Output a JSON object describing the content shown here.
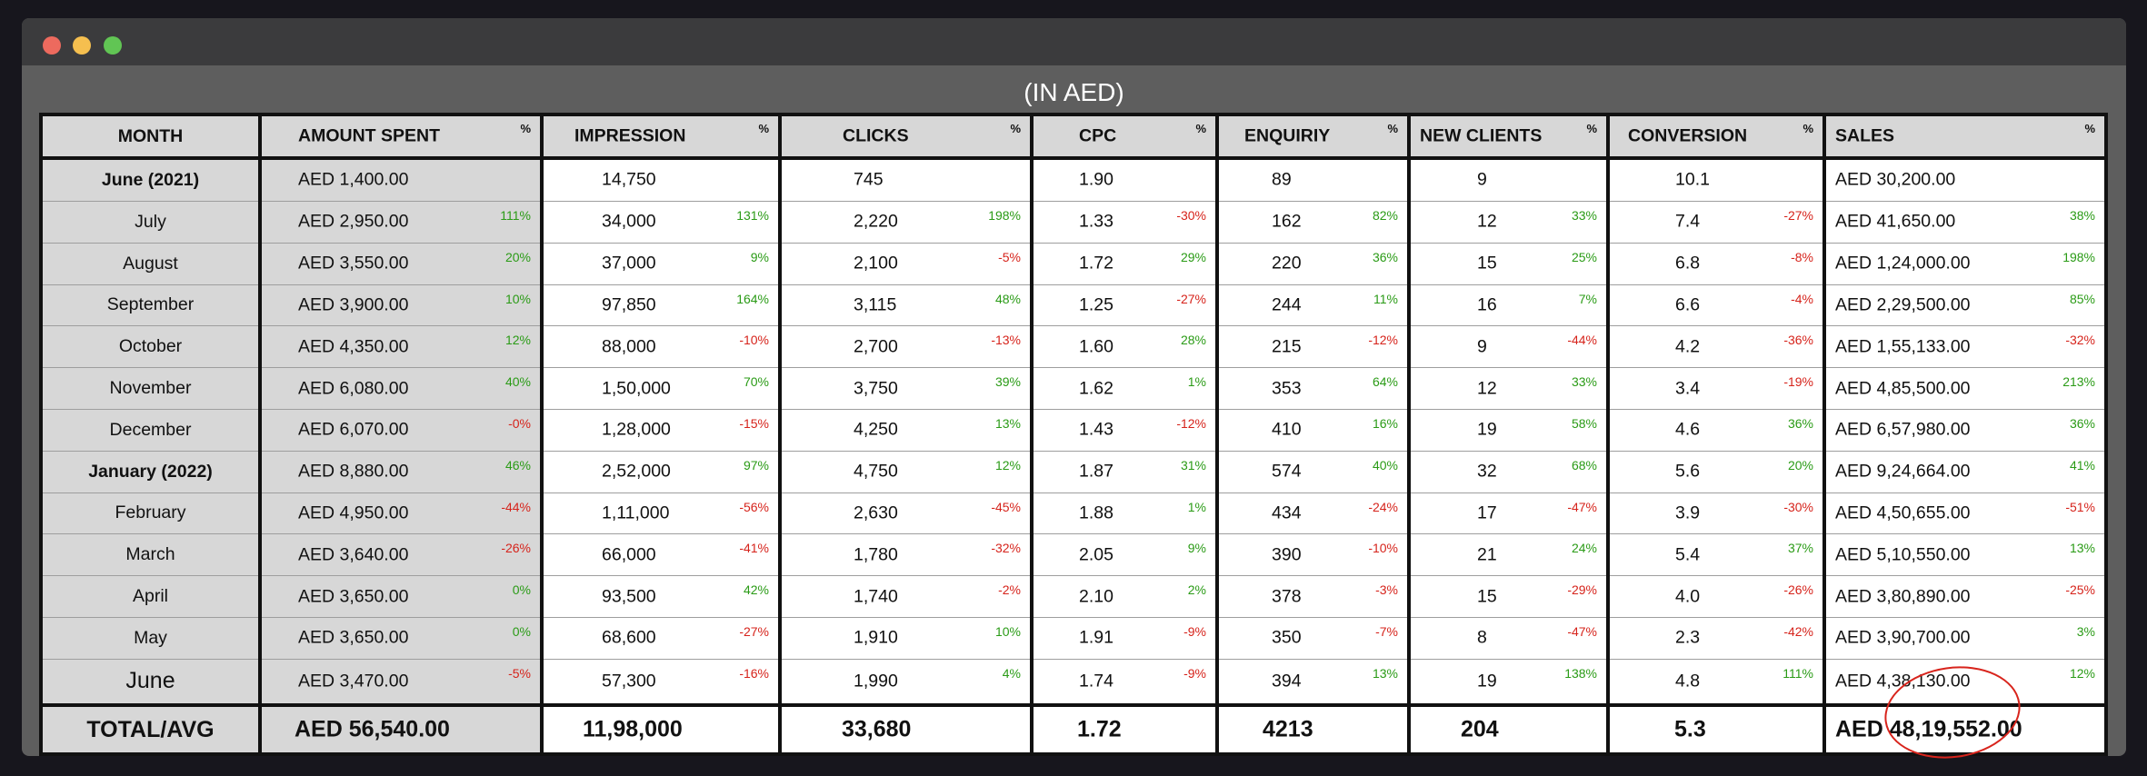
{
  "window": {
    "heading": "(IN AED)",
    "controls": [
      "close",
      "minimize",
      "zoom"
    ]
  },
  "table": {
    "headers": {
      "month": "MONTH",
      "amount_spent": "AMOUNT SPENT",
      "impression": "IMPRESSION",
      "clicks": "CLICKS",
      "cpc": "CPC",
      "enquiry": "ENQUIRIY",
      "new_clients": "NEW CLIENTS",
      "conversion": "CONVERSION",
      "sales": "SALES",
      "pct_symbol": "%"
    },
    "rows": [
      {
        "month": "June (2021)",
        "bold": true,
        "amount": "AED 1,400.00",
        "amount_pct": "",
        "impression": "14,750",
        "impression_pct": "",
        "clicks": "745",
        "clicks_pct": "",
        "cpc": "1.90",
        "cpc_pct": "",
        "enquiry": "89",
        "enquiry_pct": "",
        "new_clients": "9",
        "new_clients_pct": "",
        "conversion": "10.1",
        "conversion_pct": "",
        "sales": "AED 30,200.00",
        "sales_pct": ""
      },
      {
        "month": "July",
        "amount": "AED 2,950.00",
        "amount_pct": "111%",
        "impression": "34,000",
        "impression_pct": "131%",
        "clicks": "2,220",
        "clicks_pct": "198%",
        "cpc": "1.33",
        "cpc_pct": "-30%",
        "enquiry": "162",
        "enquiry_pct": "82%",
        "new_clients": "12",
        "new_clients_pct": "33%",
        "conversion": "7.4",
        "conversion_pct": "-27%",
        "sales": "AED 41,650.00",
        "sales_pct": "38%"
      },
      {
        "month": "August",
        "amount": "AED 3,550.00",
        "amount_pct": "20%",
        "impression": "37,000",
        "impression_pct": "9%",
        "clicks": "2,100",
        "clicks_pct": "-5%",
        "cpc": "1.72",
        "cpc_pct": "29%",
        "enquiry": "220",
        "enquiry_pct": "36%",
        "new_clients": "15",
        "new_clients_pct": "25%",
        "conversion": "6.8",
        "conversion_pct": "-8%",
        "sales": "AED 1,24,000.00",
        "sales_pct": "198%"
      },
      {
        "month": "September",
        "amount": "AED 3,900.00",
        "amount_pct": "10%",
        "impression": "97,850",
        "impression_pct": "164%",
        "clicks": "3,115",
        "clicks_pct": "48%",
        "cpc": "1.25",
        "cpc_pct": "-27%",
        "enquiry": "244",
        "enquiry_pct": "11%",
        "new_clients": "16",
        "new_clients_pct": "7%",
        "conversion": "6.6",
        "conversion_pct": "-4%",
        "sales": "AED 2,29,500.00",
        "sales_pct": "85%"
      },
      {
        "month": "October",
        "amount": "AED 4,350.00",
        "amount_pct": "12%",
        "impression": "88,000",
        "impression_pct": "-10%",
        "clicks": "2,700",
        "clicks_pct": "-13%",
        "cpc": "1.60",
        "cpc_pct": "28%",
        "enquiry": "215",
        "enquiry_pct": "-12%",
        "new_clients": "9",
        "new_clients_pct": "-44%",
        "conversion": "4.2",
        "conversion_pct": "-36%",
        "sales": "AED 1,55,133.00",
        "sales_pct": "-32%"
      },
      {
        "month": "November",
        "amount": "AED 6,080.00",
        "amount_pct": "40%",
        "impression": "1,50,000",
        "impression_pct": "70%",
        "clicks": "3,750",
        "clicks_pct": "39%",
        "cpc": "1.62",
        "cpc_pct": "1%",
        "enquiry": "353",
        "enquiry_pct": "64%",
        "new_clients": "12",
        "new_clients_pct": "33%",
        "conversion": "3.4",
        "conversion_pct": "-19%",
        "sales": "AED 4,85,500.00",
        "sales_pct": "213%"
      },
      {
        "month": "December",
        "amount": "AED 6,070.00",
        "amount_pct": "-0%",
        "impression": "1,28,000",
        "impression_pct": "-15%",
        "clicks": "4,250",
        "clicks_pct": "13%",
        "cpc": "1.43",
        "cpc_pct": "-12%",
        "enquiry": "410",
        "enquiry_pct": "16%",
        "new_clients": "19",
        "new_clients_pct": "58%",
        "conversion": "4.6",
        "conversion_pct": "36%",
        "sales": "AED 6,57,980.00",
        "sales_pct": "36%"
      },
      {
        "month": "January (2022)",
        "bold": true,
        "amount": "AED 8,880.00",
        "amount_pct": "46%",
        "impression": "2,52,000",
        "impression_pct": "97%",
        "clicks": "4,750",
        "clicks_pct": "12%",
        "cpc": "1.87",
        "cpc_pct": "31%",
        "enquiry": "574",
        "enquiry_pct": "40%",
        "new_clients": "32",
        "new_clients_pct": "68%",
        "conversion": "5.6",
        "conversion_pct": "20%",
        "sales": "AED 9,24,664.00",
        "sales_pct": "41%"
      },
      {
        "month": "February",
        "amount": "AED 4,950.00",
        "amount_pct": "-44%",
        "impression": "1,11,000",
        "impression_pct": "-56%",
        "clicks": "2,630",
        "clicks_pct": "-45%",
        "cpc": "1.88",
        "cpc_pct": "1%",
        "enquiry": "434",
        "enquiry_pct": "-24%",
        "new_clients": "17",
        "new_clients_pct": "-47%",
        "conversion": "3.9",
        "conversion_pct": "-30%",
        "sales": "AED 4,50,655.00",
        "sales_pct": "-51%"
      },
      {
        "month": "March",
        "amount": "AED 3,640.00",
        "amount_pct": "-26%",
        "impression": "66,000",
        "impression_pct": "-41%",
        "clicks": "1,780",
        "clicks_pct": "-32%",
        "cpc": "2.05",
        "cpc_pct": "9%",
        "enquiry": "390",
        "enquiry_pct": "-10%",
        "new_clients": "21",
        "new_clients_pct": "24%",
        "conversion": "5.4",
        "conversion_pct": "37%",
        "sales": "AED 5,10,550.00",
        "sales_pct": "13%"
      },
      {
        "month": "April",
        "amount": "AED 3,650.00",
        "amount_pct": "0%",
        "impression": "93,500",
        "impression_pct": "42%",
        "clicks": "1,740",
        "clicks_pct": "-2%",
        "cpc": "2.10",
        "cpc_pct": "2%",
        "enquiry": "378",
        "enquiry_pct": "-3%",
        "new_clients": "15",
        "new_clients_pct": "-29%",
        "conversion": "4.0",
        "conversion_pct": "-26%",
        "sales": "AED 3,80,890.00",
        "sales_pct": "-25%"
      },
      {
        "month": "May",
        "amount": "AED 3,650.00",
        "amount_pct": "0%",
        "impression": "68,600",
        "impression_pct": "-27%",
        "clicks": "1,910",
        "clicks_pct": "10%",
        "cpc": "1.91",
        "cpc_pct": "-9%",
        "enquiry": "350",
        "enquiry_pct": "-7%",
        "new_clients": "8",
        "new_clients_pct": "-47%",
        "conversion": "2.3",
        "conversion_pct": "-42%",
        "sales": "AED 3,90,700.00",
        "sales_pct": "3%"
      },
      {
        "month": "June",
        "big": true,
        "amount": "AED 3,470.00",
        "amount_pct": "-5%",
        "impression": "57,300",
        "impression_pct": "-16%",
        "clicks": "1,990",
        "clicks_pct": "4%",
        "cpc": "1.74",
        "cpc_pct": "-9%",
        "enquiry": "394",
        "enquiry_pct": "13%",
        "new_clients": "19",
        "new_clients_pct": "138%",
        "conversion": "4.8",
        "conversion_pct": "111%",
        "sales": "AED 4,38,130.00",
        "sales_pct": "12%"
      }
    ],
    "totals": {
      "label": "TOTAL/AVG",
      "amount": "AED 56,540.00",
      "impression": "11,98,000",
      "clicks": "33,680",
      "cpc": "1.72",
      "enquiry": "4213",
      "new_clients": "204",
      "conversion": "5.3",
      "sales": "AED 48,19,552.00"
    }
  },
  "colors": {
    "window_bg": "#5e5e5e",
    "titlebar_bg": "#3b3b3d",
    "header_bg": "#d7d7d7",
    "positive": "#2a9b16",
    "negative": "#d6231b",
    "highlight_circle": "#d8241c",
    "muted_total": "#9b9b9b"
  }
}
